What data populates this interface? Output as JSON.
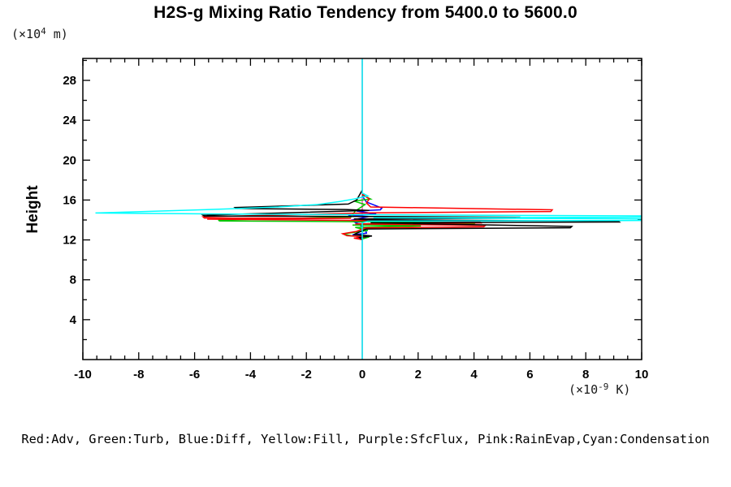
{
  "title": "H2S-g Mixing Ratio Tendency from 5400.0 to 5600.0",
  "y_axis": {
    "label": "Height",
    "unit_base": "(×10",
    "unit_exp": "4",
    "unit_rest": " m)"
  },
  "x_axis": {
    "unit_base": "(×10",
    "unit_exp": "-9",
    "unit_rest": " K)"
  },
  "legend": {
    "text": "Red:Adv, Green:Turb, Blue:Diff, Yellow:Fill, Purple:SfcFlux, Pink:RainEvap,Cyan:Condensation"
  },
  "chart_data": {
    "type": "line",
    "title": "H2S-g Mixing Ratio Tendency from 5400.0 to 5600.0",
    "xlabel": "(×10^-9 K)",
    "ylabel": "Height (×10^4 m)",
    "xlim": [
      -10,
      10
    ],
    "ylim": [
      0,
      30.2
    ],
    "x_ticks": [
      -10,
      -8,
      -6,
      -4,
      -2,
      0,
      2,
      4,
      6,
      8,
      10
    ],
    "y_ticks": [
      4,
      8,
      12,
      16,
      20,
      24,
      28
    ],
    "x_minor_step": 0.5,
    "y_minor_step": 2,
    "grid": false,
    "legend_position": "bottom",
    "series": [
      {
        "id": "fill",
        "legend": "Yellow:Fill",
        "color": "#ffff00",
        "points": [
          [
            0,
            30.2
          ],
          [
            0,
            0
          ]
        ]
      },
      {
        "id": "sfcflux",
        "legend": "Purple:SfcFlux",
        "color": "#a020f0",
        "points": [
          [
            0,
            30.2
          ],
          [
            0,
            0
          ]
        ]
      },
      {
        "id": "rainevap",
        "legend": "Pink:RainEvap",
        "color": "#ff80c0",
        "points": [
          [
            0,
            30.2
          ],
          [
            0,
            0
          ]
        ]
      },
      {
        "id": "diff",
        "legend": "Blue:Diff",
        "color": "#0000ff",
        "points": [
          [
            0,
            16.4
          ],
          [
            0.15,
            15.8
          ],
          [
            0.7,
            15.2
          ],
          [
            0.65,
            15.02
          ],
          [
            -0.2,
            14.9
          ],
          [
            0.5,
            14.6
          ],
          [
            -0.5,
            14.48
          ],
          [
            0.25,
            14.35
          ],
          [
            -0.4,
            13.98
          ],
          [
            0.3,
            13.88
          ],
          [
            -0.25,
            13.76
          ],
          [
            0.1,
            13.2
          ],
          [
            0.15,
            12.68
          ],
          [
            -0.35,
            12.52
          ],
          [
            0.3,
            12.4
          ],
          [
            -0.2,
            12.26
          ],
          [
            0,
            12.1
          ]
        ]
      },
      {
        "id": "turb",
        "legend": "Green:Turb",
        "color": "#00c800",
        "points": [
          [
            0,
            16.5
          ],
          [
            0.3,
            16.1
          ],
          [
            -0.3,
            15.9
          ],
          [
            0.1,
            15.55
          ],
          [
            -0.25,
            14.9
          ],
          [
            -0.4,
            14.3
          ],
          [
            -5.15,
            13.98
          ],
          [
            -5.1,
            13.9
          ],
          [
            0.3,
            13.82
          ],
          [
            4.05,
            13.72
          ],
          [
            4.0,
            13.6
          ],
          [
            -0.35,
            13.5
          ],
          [
            2.1,
            13.4
          ],
          [
            -0.25,
            13.26
          ],
          [
            0.2,
            12.95
          ],
          [
            -0.7,
            12.6
          ],
          [
            -0.4,
            12.42
          ],
          [
            0.25,
            12.3
          ],
          [
            0,
            12.1
          ]
        ]
      },
      {
        "id": "adv",
        "legend": "Red:Adv",
        "color": "#ff0000",
        "points": [
          [
            0,
            16.6
          ],
          [
            0.25,
            16.1
          ],
          [
            0.15,
            15.7
          ],
          [
            0.3,
            15.3
          ],
          [
            6.8,
            15.02
          ],
          [
            6.75,
            14.85
          ],
          [
            0.3,
            14.72
          ],
          [
            -5.7,
            14.32
          ],
          [
            -5.65,
            14.2
          ],
          [
            -0.4,
            14.16
          ],
          [
            -5.55,
            14.08
          ],
          [
            -0.3,
            13.95
          ],
          [
            4.2,
            13.85
          ],
          [
            4.25,
            13.7
          ],
          [
            -0.25,
            13.6
          ],
          [
            4.4,
            13.45
          ],
          [
            4.35,
            13.32
          ],
          [
            0.1,
            13.2
          ],
          [
            -0.2,
            12.85
          ],
          [
            -0.7,
            12.62
          ],
          [
            -0.55,
            12.42
          ],
          [
            0.15,
            12.32
          ],
          [
            -0.3,
            12.18
          ],
          [
            0,
            12.02
          ]
        ]
      },
      {
        "id": "black",
        "legend": "",
        "color": "#000000",
        "points": [
          [
            0,
            17.0
          ],
          [
            -0.2,
            16.0
          ],
          [
            -0.5,
            15.6
          ],
          [
            -4.55,
            15.25
          ],
          [
            -4.5,
            15.15
          ],
          [
            -0.6,
            15.05
          ],
          [
            0.25,
            14.95
          ],
          [
            -5.7,
            14.48
          ],
          [
            -5.65,
            14.4
          ],
          [
            0.2,
            14.35
          ],
          [
            5.6,
            14.28
          ],
          [
            5.55,
            14.18
          ],
          [
            -0.3,
            14.1
          ],
          [
            0.25,
            14.0
          ],
          [
            9.15,
            13.9
          ],
          [
            9.2,
            13.8
          ],
          [
            0.3,
            13.72
          ],
          [
            7.5,
            13.35
          ],
          [
            7.45,
            13.22
          ],
          [
            0.15,
            13.1
          ],
          [
            -0.3,
            12.55
          ],
          [
            0.35,
            12.4
          ],
          [
            -0.1,
            12.25
          ],
          [
            0,
            12.0
          ]
        ]
      },
      {
        "id": "condensation",
        "legend": "Cyan:Condensation",
        "color": "#00ffff",
        "points": [
          [
            0,
            30.2
          ],
          [
            0,
            16.7
          ],
          [
            0.2,
            16.4
          ],
          [
            -0.3,
            16.1
          ],
          [
            -0.8,
            15.85
          ],
          [
            -1.6,
            15.55
          ],
          [
            -3.0,
            15.3
          ],
          [
            -4.7,
            15.12
          ],
          [
            -7.8,
            14.85
          ],
          [
            -9.55,
            14.7
          ],
          [
            -5.0,
            14.6
          ],
          [
            0.3,
            14.52
          ],
          [
            10.5,
            14.4
          ],
          [
            10.5,
            14.28
          ],
          [
            0.4,
            14.22
          ],
          [
            10.5,
            14.1
          ],
          [
            10.5,
            13.95
          ],
          [
            0.2,
            13.88
          ],
          [
            0,
            13.7
          ],
          [
            0,
            0
          ]
        ]
      }
    ]
  }
}
